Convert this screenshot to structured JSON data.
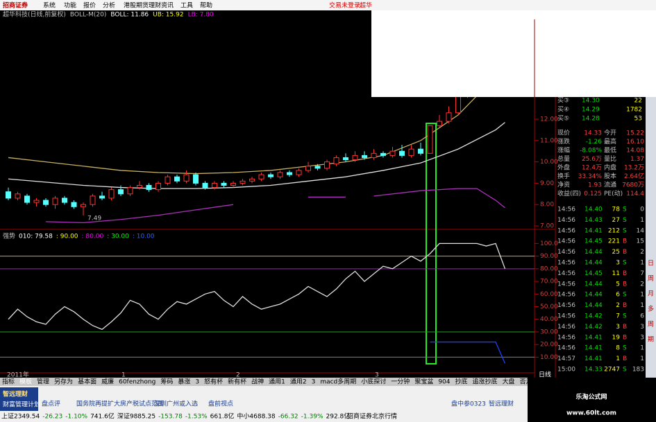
{
  "menu": {
    "logo": "招商证券",
    "items": [
      "系统",
      "功能",
      "报价",
      "分析",
      "港股期货理财",
      "资讯",
      "工具",
      "帮助"
    ],
    "login": "交易未登录",
    "stock": "超华"
  },
  "chart_header": [
    {
      "text": "超华科技(日线,前复权)",
      "color": "#c0c0c0"
    },
    {
      "text": "BOLL-M(20)",
      "color": "#c0c0c0"
    },
    {
      "text": "BOLL: 11.86",
      "color": "#ffffff"
    },
    {
      "text": "UB: 15.92",
      "color": "#ffff00"
    },
    {
      "text": "LB: 7.80",
      "color": "#ff00ff"
    }
  ],
  "price_chart": {
    "type": "candlestick",
    "ylim": [
      6.87,
      13.04
    ],
    "yticks": [
      {
        "value": 7,
        "label": "7.00"
      },
      {
        "value": 8,
        "label": "8.00"
      },
      {
        "value": 9,
        "label": "9.00"
      },
      {
        "value": 10,
        "label": "10.00"
      },
      {
        "value": 11,
        "label": "11.00"
      },
      {
        "value": 12,
        "label": "12.00"
      }
    ],
    "up_color": "#ff3232",
    "down_color": "#54ffff",
    "ohlc": [
      [
        8.6,
        8.3,
        8.8,
        8.2
      ],
      [
        8.3,
        8.5,
        8.6,
        8.2
      ],
      [
        8.4,
        8.1,
        8.5,
        8.0
      ],
      [
        8.1,
        8.2,
        8.3,
        7.9
      ],
      [
        8.2,
        8.0,
        8.3,
        7.9
      ],
      [
        8.0,
        8.3,
        8.4,
        7.8
      ],
      [
        8.3,
        8.1,
        8.4,
        8.0
      ],
      [
        8.1,
        7.9,
        8.2,
        7.8
      ],
      [
        7.9,
        8.0,
        8.1,
        7.49
      ],
      [
        8.0,
        8.4,
        8.5,
        7.9
      ],
      [
        8.4,
        8.3,
        8.6,
        8.2
      ],
      [
        8.3,
        8.7,
        8.8,
        8.2
      ],
      [
        8.7,
        8.5,
        8.9,
        8.4
      ],
      [
        8.5,
        8.8,
        8.9,
        8.4
      ],
      [
        8.8,
        8.9,
        9.1,
        8.7
      ],
      [
        8.9,
        8.7,
        9.0,
        8.6
      ],
      [
        8.7,
        9.0,
        9.1,
        8.6
      ],
      [
        9.0,
        9.3,
        9.4,
        8.9
      ],
      [
        9.3,
        9.1,
        9.4,
        9.0
      ],
      [
        9.1,
        9.4,
        9.6,
        9.0
      ],
      [
        9.4,
        9.0,
        9.5,
        8.9
      ],
      [
        9.0,
        8.8,
        9.1,
        8.7
      ],
      [
        8.8,
        9.0,
        9.1,
        8.7
      ],
      [
        9.0,
        8.9,
        9.1,
        8.8
      ],
      [
        8.9,
        9.0,
        9.1,
        8.8
      ],
      [
        9.0,
        9.1,
        9.2,
        8.9
      ],
      [
        9.1,
        9.2,
        9.3,
        9.0
      ],
      [
        9.2,
        9.4,
        9.5,
        9.1
      ],
      [
        9.4,
        9.3,
        9.5,
        9.2
      ],
      [
        9.3,
        9.5,
        9.6,
        9.2
      ],
      [
        9.5,
        9.4,
        9.6,
        9.3
      ],
      [
        9.4,
        9.6,
        9.7,
        9.3
      ],
      [
        9.6,
        9.8,
        10.0,
        9.5
      ],
      [
        9.8,
        9.7,
        9.9,
        9.6
      ],
      [
        9.7,
        10.0,
        10.1,
        9.6
      ],
      [
        9.9,
        10.2,
        10.3,
        9.8
      ],
      [
        10.2,
        10.1,
        10.4,
        10.0
      ],
      [
        10.1,
        10.3,
        10.5,
        10.0
      ],
      [
        10.3,
        10.2,
        10.5,
        10.1
      ],
      [
        10.2,
        10.4,
        10.6,
        10.1
      ],
      [
        10.4,
        10.3,
        10.5,
        10.2
      ],
      [
        10.3,
        10.5,
        10.7,
        10.2
      ],
      [
        10.5,
        10.3,
        10.8,
        10.2
      ],
      [
        10.3,
        10.6,
        10.8,
        10.2
      ],
      [
        10.6,
        10.4,
        10.9,
        10.3
      ],
      [
        10.4,
        11.7,
        11.7,
        10.4
      ],
      [
        11.7,
        11.9,
        12.2,
        11.6
      ],
      [
        11.9,
        12.3,
        12.6,
        11.8
      ],
      [
        12.3,
        13.2,
        13.4,
        12.2
      ],
      [
        13.2,
        13.8,
        14.5,
        13.0
      ]
    ],
    "low_label": "7.49",
    "lines": [
      {
        "color": "#c8b060",
        "x": [
          0,
          4,
          8,
          12,
          16,
          20,
          24,
          28,
          32,
          36,
          40,
          44,
          48,
          50
        ],
        "values": [
          10.2,
          10.0,
          9.8,
          9.6,
          9.5,
          9.45,
          9.5,
          9.6,
          9.8,
          10.0,
          10.3,
          11.0,
          12.2,
          13.1
        ]
      },
      {
        "color": "#e0e0e0",
        "x": [
          0,
          4,
          8,
          12,
          16,
          20,
          24,
          28,
          32,
          36,
          40,
          44,
          48,
          52,
          53
        ],
        "values": [
          9.2,
          9.05,
          8.9,
          8.8,
          8.75,
          8.75,
          8.8,
          8.9,
          9.1,
          9.3,
          9.6,
          9.95,
          10.6,
          11.5,
          11.85
        ]
      },
      {
        "color": "#b030c0",
        "x": [
          4,
          8,
          12,
          16,
          20,
          24,
          28,
          32,
          36,
          37,
          39,
          44,
          48,
          50,
          52,
          53
        ],
        "values": [
          7.2,
          7.15,
          7.3,
          7.5,
          7.75,
          8.0,
          null,
          8.35,
          8.35,
          null,
          8.4,
          8.65,
          8.75,
          8.75,
          8.2,
          7.85
        ]
      }
    ]
  },
  "osc_chart": {
    "type": "line",
    "header": [
      {
        "text": "强势",
        "color": "#c0c0c0"
      },
      {
        "text": "010: 79.58",
        "color": "#ffffff"
      },
      {
        "text": ": 90.00",
        "color": "#ffff00"
      },
      {
        "text": ": 80.00",
        "color": "#ff00ff"
      },
      {
        "text": ": 30.00",
        "color": "#00ff00"
      },
      {
        "text": ": 10.00",
        "color": "#3060ff"
      }
    ],
    "ylim": [
      2,
      109
    ],
    "yticks": [
      {
        "value": 10,
        "label": "10.00"
      },
      {
        "value": 20,
        "label": "20.00"
      },
      {
        "value": 30,
        "label": "30.00"
      },
      {
        "value": 40,
        "label": "40.00"
      },
      {
        "value": 50,
        "label": "50.00"
      },
      {
        "value": 60,
        "label": "60.00"
      },
      {
        "value": 70,
        "label": "70.00"
      },
      {
        "value": 80,
        "label": "80.00"
      },
      {
        "value": 90,
        "label": "90.00"
      },
      {
        "value": 100,
        "label": "100.0"
      }
    ],
    "levels": [
      {
        "value": 90,
        "color": "#c8b040"
      },
      {
        "value": 80,
        "color": "#a020c0"
      },
      {
        "value": 30,
        "color": "#20a020"
      },
      {
        "value": 10,
        "color": "#808080"
      }
    ],
    "lines": [
      {
        "color": "#e0e0e0",
        "x": [
          0,
          1,
          2,
          3,
          4,
          5,
          6,
          7,
          8,
          9,
          10,
          11,
          12,
          13,
          14,
          15,
          16,
          17,
          18,
          19,
          20,
          21,
          22,
          23,
          24,
          25,
          26,
          27,
          28,
          29,
          30,
          31,
          32,
          33,
          34,
          35,
          36,
          37,
          38,
          39,
          40,
          41,
          42,
          43,
          44,
          45,
          46,
          47,
          48,
          49,
          50,
          51,
          52,
          53
        ],
        "values": [
          40,
          48,
          42,
          38,
          36,
          44,
          50,
          46,
          40,
          35,
          32,
          38,
          45,
          55,
          52,
          44,
          40,
          48,
          54,
          52,
          56,
          60,
          62,
          55,
          50,
          58,
          52,
          48,
          50,
          52,
          56,
          60,
          66,
          62,
          58,
          64,
          72,
          78,
          70,
          76,
          82,
          80,
          85,
          90,
          86,
          92,
          100,
          100,
          100,
          100,
          100,
          98,
          100,
          80
        ]
      },
      {
        "color": "#2040ff",
        "x": [
          45,
          46,
          47,
          48,
          49,
          50,
          51,
          52,
          53
        ],
        "values": [
          22,
          22,
          22,
          22,
          22,
          22,
          22,
          22,
          5
        ]
      }
    ]
  },
  "time_axis": [
    "2011年",
    "1",
    "2",
    "3"
  ],
  "period": "日线",
  "quote": {
    "book": [
      [
        "买③",
        "14.30",
        "22"
      ],
      [
        "买④",
        "14.29",
        "1782"
      ],
      [
        "买⑤",
        "14.28",
        "53"
      ]
    ],
    "fields": [
      [
        "现价",
        "14.33",
        "今开",
        "15.22"
      ],
      [
        "涨跌",
        "-1.26",
        "最高",
        "16.10"
      ],
      [
        "涨幅",
        "-8.08%",
        "最低",
        "14.08"
      ],
      [
        "总量",
        "25.6万",
        "量比",
        "1.37"
      ],
      [
        "外盘",
        "12.4万",
        "内盘",
        "13.2万"
      ],
      [
        "换手",
        "33.34%",
        "股本",
        "2.64亿"
      ],
      [
        "净资",
        "1.93",
        "流通",
        "7680万"
      ],
      [
        "收益(四)",
        "0.125",
        "PE(动)",
        "114.4"
      ]
    ],
    "ticks": [
      [
        "14:56",
        "14.40",
        "78",
        "S",
        "0"
      ],
      [
        "14:56",
        "14.43",
        "27",
        "S",
        "1"
      ],
      [
        "14:56",
        "14.41",
        "212",
        "S",
        "14"
      ],
      [
        "14:56",
        "14.45",
        "221",
        "B",
        "15"
      ],
      [
        "14:56",
        "14.44",
        "25",
        "B",
        "2"
      ],
      [
        "14:56",
        "14.44",
        "3",
        "S",
        "1"
      ],
      [
        "14:56",
        "14.45",
        "11",
        "B",
        "7"
      ],
      [
        "14:56",
        "14.44",
        "5",
        "B",
        "2"
      ],
      [
        "14:56",
        "14.44",
        "6",
        "S",
        "1"
      ],
      [
        "14:56",
        "14.44",
        "2",
        "B",
        "1"
      ],
      [
        "14:56",
        "14.42",
        "7",
        "S",
        "6"
      ],
      [
        "14:56",
        "14.42",
        "3",
        "B",
        "3"
      ],
      [
        "14:56",
        "14.41",
        "19",
        "B",
        "3"
      ],
      [
        "14:56",
        "14.41",
        "8",
        "S",
        "1"
      ],
      [
        "14:57",
        "14.41",
        "1",
        "B",
        "1"
      ],
      [
        "15:00",
        "14.33",
        "2747",
        "S",
        "183"
      ]
    ]
  },
  "side_tabs": [
    "日",
    "周",
    "月",
    "多",
    "周",
    "期"
  ],
  "tabs": [
    "指标",
    "模板",
    "管理",
    "另存为",
    "基本面",
    "威廉",
    "60fenzhong",
    "筹码",
    "暴涨",
    "3",
    "怒有杯",
    "新有杯",
    "战神",
    "通用1",
    "通用2",
    "3",
    "macd多周期",
    "小底探讨",
    "一分钟",
    "聚宝盆",
    "904",
    "抄底",
    "追涨抄底",
    "大盘",
    "否源",
    "cdp"
  ],
  "brand": {
    "title": "智远理财",
    "sub": "财富管理计划"
  },
  "news": [
    "盘点评",
    "国务院再提扩大房产税试点范围",
    "深圳广州或入选",
    "盘前视点",
    "盘中参0323",
    "智远理财"
  ],
  "status": [
    [
      "上证2349.54",
      "-26.23",
      "-1.10%",
      "741.6亿"
    ],
    [
      "深证9885.25",
      "-153.78",
      "-1.53%",
      "661.8亿"
    ],
    [
      "中小4688.38",
      "-66.32",
      "-1.39%",
      "292.8亿"
    ]
  ],
  "feed": "招商证券北京行情",
  "watermark": {
    "title": "乐淘公式网",
    "url": "www.60lt.com"
  }
}
